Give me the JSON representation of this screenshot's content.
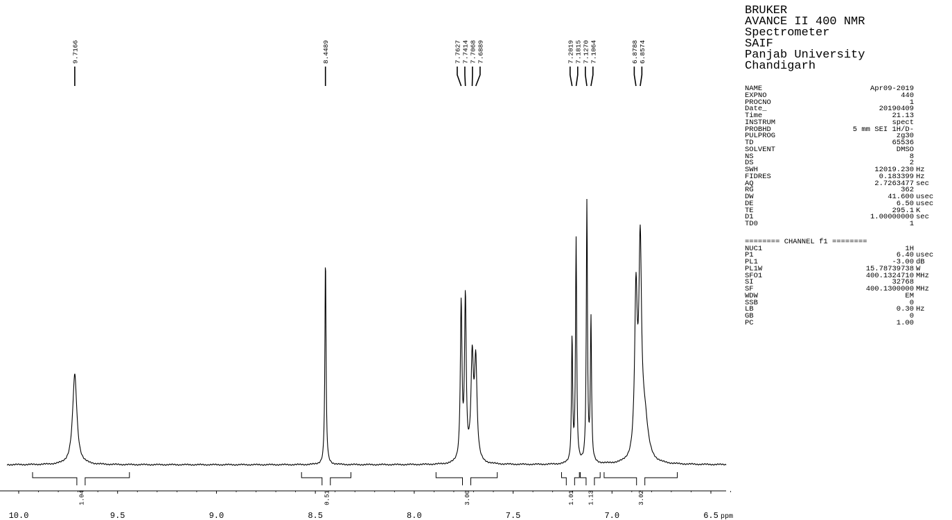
{
  "header": {
    "lines": [
      "BRUKER",
      "AVANCE II 400 NMR",
      "Spectrometer",
      "SAIF",
      "Panjab University",
      "Chandigarh"
    ]
  },
  "acquisition_params": [
    {
      "name": "NAME",
      "value": "Apr09-2019",
      "unit": ""
    },
    {
      "name": "EXPNO",
      "value": "440",
      "unit": ""
    },
    {
      "name": "PROCNO",
      "value": "1",
      "unit": ""
    },
    {
      "name": "Date_",
      "value": "20190409",
      "unit": ""
    },
    {
      "name": "Time",
      "value": "21.13",
      "unit": ""
    },
    {
      "name": "INSTRUM",
      "value": "spect",
      "unit": ""
    },
    {
      "name": "PROBHD",
      "value": "5 mm SEI 1H/D-",
      "unit": ""
    },
    {
      "name": "PULPROG",
      "value": "zg30",
      "unit": ""
    },
    {
      "name": "TD",
      "value": "65536",
      "unit": ""
    },
    {
      "name": "SOLVENT",
      "value": "DMSO",
      "unit": ""
    },
    {
      "name": "NS",
      "value": "8",
      "unit": ""
    },
    {
      "name": "DS",
      "value": "2",
      "unit": ""
    },
    {
      "name": "SWH",
      "value": "12019.230",
      "unit": "Hz"
    },
    {
      "name": "FIDRES",
      "value": "0.183399",
      "unit": "Hz"
    },
    {
      "name": "AQ",
      "value": "2.7263477",
      "unit": "sec"
    },
    {
      "name": "RG",
      "value": "362",
      "unit": ""
    },
    {
      "name": "DW",
      "value": "41.600",
      "unit": "usec"
    },
    {
      "name": "DE",
      "value": "6.50",
      "unit": "usec"
    },
    {
      "name": "TE",
      "value": "295.1",
      "unit": "K"
    },
    {
      "name": "D1",
      "value": "1.00000000",
      "unit": "sec"
    },
    {
      "name": "TD0",
      "value": "1",
      "unit": ""
    }
  ],
  "channel_header": "======== CHANNEL f1 ========",
  "channel_params": [
    {
      "name": "NUC1",
      "value": "1H",
      "unit": ""
    },
    {
      "name": "P1",
      "value": "6.40",
      "unit": "usec"
    },
    {
      "name": "PL1",
      "value": "-3.00",
      "unit": "dB"
    },
    {
      "name": "PL1W",
      "value": "15.78739738",
      "unit": "W"
    },
    {
      "name": "SFO1",
      "value": "400.1324710",
      "unit": "MHz"
    },
    {
      "name": "SI",
      "value": "32768",
      "unit": ""
    },
    {
      "name": "SF",
      "value": "400.1300000",
      "unit": "MHz"
    },
    {
      "name": "WDW",
      "value": "EM",
      "unit": ""
    },
    {
      "name": "SSB",
      "value": "0",
      "unit": ""
    },
    {
      "name": "LB",
      "value": "0.30",
      "unit": "Hz"
    },
    {
      "name": "GB",
      "value": "0",
      "unit": ""
    },
    {
      "name": "PC",
      "value": "1.00",
      "unit": ""
    }
  ],
  "chart_data": {
    "type": "line",
    "xlabel": "ppm",
    "xlim": [
      10.2,
      6.0
    ],
    "ylim": [
      0,
      1
    ],
    "reversed_x": true,
    "grid": false,
    "x_ticks": [
      "10.0",
      "9.5",
      "9.0",
      "8.5",
      "8.0",
      "7.5",
      "7.0",
      "6.5"
    ],
    "x_tick_values": [
      10.0,
      9.5,
      9.0,
      8.5,
      8.0,
      7.5,
      7.0,
      6.5
    ],
    "peaks": [
      {
        "ppm": 9.7166,
        "height": 0.34,
        "width": 0.013
      },
      {
        "ppm": 8.4489,
        "height": 0.78,
        "width": 0.0035
      },
      {
        "ppm": 7.7627,
        "height": 0.59,
        "width": 0.005
      },
      {
        "ppm": 7.7414,
        "height": 0.61,
        "width": 0.005
      },
      {
        "ppm": 7.7068,
        "height": 0.38,
        "width": 0.0075
      },
      {
        "ppm": 7.6889,
        "height": 0.37,
        "width": 0.0075
      },
      {
        "ppm": 7.2019,
        "height": 0.47,
        "width": 0.0035
      },
      {
        "ppm": 7.1815,
        "height": 0.84,
        "width": 0.0035
      },
      {
        "ppm": 7.127,
        "height": 0.98,
        "width": 0.0035
      },
      {
        "ppm": 7.1064,
        "height": 0.54,
        "width": 0.0035
      },
      {
        "ppm": 6.8788,
        "height": 0.6,
        "width": 0.008
      },
      {
        "ppm": 6.8574,
        "height": 0.76,
        "width": 0.008
      },
      {
        "ppm": 6.835,
        "height": 0.16,
        "width": 0.02
      }
    ],
    "peak_labels": [
      {
        "group": 0,
        "labels": [
          "9.7166"
        ]
      },
      {
        "group": 1,
        "labels": [
          "8.4489"
        ]
      },
      {
        "group": 2,
        "labels": [
          "7.7627",
          "7.7414",
          "7.7068",
          "7.6889"
        ]
      },
      {
        "group": 3,
        "labels": [
          "7.2019",
          "7.1815",
          "7.1270",
          "7.1064"
        ]
      },
      {
        "group": 4,
        "labels": [
          "6.8788",
          "6.8574"
        ]
      }
    ],
    "peak_label_ppm": [
      [
        9.7166
      ],
      [
        8.4489
      ],
      [
        7.7627,
        7.7414,
        7.7068,
        7.6889
      ],
      [
        7.2019,
        7.1815,
        7.127,
        7.1064
      ],
      [
        6.8788,
        6.8574
      ]
    ],
    "integrals": [
      {
        "label": "1.04",
        "from": 9.93,
        "to": 9.44,
        "value": 1.04
      },
      {
        "label": "0.51",
        "from": 8.57,
        "to": 8.32,
        "value": 0.51
      },
      {
        "label": "3.00",
        "from": 7.89,
        "to": 7.58,
        "value": 3.0
      },
      {
        "label": "1.01",
        "from": 7.255,
        "to": 7.165,
        "value": 1.01
      },
      {
        "label": "1.13",
        "from": 7.16,
        "to": 7.06,
        "value": 1.13
      },
      {
        "label": "3.02",
        "from": 7.04,
        "to": 6.67,
        "value": 3.02
      }
    ]
  }
}
